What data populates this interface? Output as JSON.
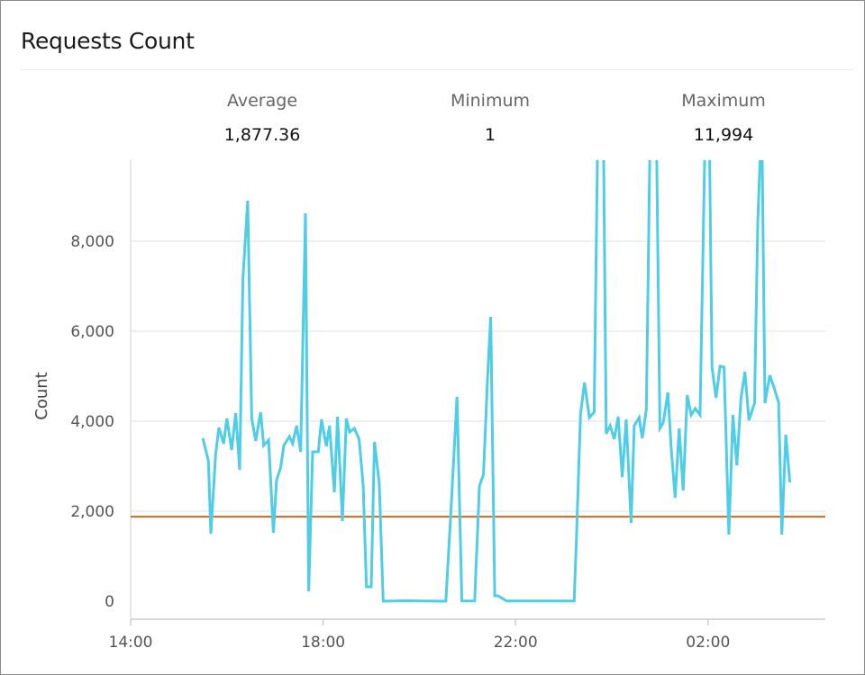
{
  "panel": {
    "title": "Requests Count"
  },
  "stats": [
    {
      "label": "Average",
      "value": "1,877.36"
    },
    {
      "label": "Minimum",
      "value": "1"
    },
    {
      "label": "Maximum",
      "value": "11,994"
    }
  ],
  "chart_data": {
    "type": "line",
    "title": "Requests Count",
    "xlabel": "",
    "ylabel": "Count",
    "x_ticks": [
      "14:00",
      "18:00",
      "22:00",
      "02:00"
    ],
    "y_ticks": [
      "0",
      "2,000",
      "4,000",
      "6,000",
      "8,000"
    ],
    "y_tick_values": [
      0,
      2000,
      4000,
      6000,
      8000
    ],
    "xlim": [
      "14:00",
      "04:26"
    ],
    "ylim": [
      0,
      9800
    ],
    "grid": true,
    "colors": {
      "series": "#4ecde6",
      "average": "#d4651c",
      "grid": "#ebebeb"
    },
    "average_line": 1877.36,
    "series": [
      {
        "points": [
          [
            "15:30",
            3620
          ],
          [
            "15:37",
            3120
          ],
          [
            "15:40",
            1500
          ],
          [
            "15:46",
            3260
          ],
          [
            "15:50",
            3860
          ],
          [
            "15:56",
            3500
          ],
          [
            "16:00",
            4060
          ],
          [
            "16:06",
            3360
          ],
          [
            "16:11",
            4180
          ],
          [
            "16:16",
            2920
          ],
          [
            "16:20",
            7160
          ],
          [
            "16:26",
            8900
          ],
          [
            "16:31",
            4060
          ],
          [
            "16:36",
            3560
          ],
          [
            "16:42",
            4200
          ],
          [
            "16:46",
            3460
          ],
          [
            "16:52",
            3580
          ],
          [
            "16:58",
            1520
          ],
          [
            "17:02",
            2700
          ],
          [
            "17:07",
            2960
          ],
          [
            "17:11",
            3460
          ],
          [
            "17:18",
            3660
          ],
          [
            "17:22",
            3500
          ],
          [
            "17:27",
            3900
          ],
          [
            "17:32",
            3320
          ],
          [
            "17:38",
            8620
          ],
          [
            "17:42",
            220
          ],
          [
            "17:47",
            3320
          ],
          [
            "17:54",
            3320
          ],
          [
            "17:58",
            4040
          ],
          [
            "18:04",
            3440
          ],
          [
            "18:08",
            3900
          ],
          [
            "18:14",
            2420
          ],
          [
            "18:18",
            4100
          ],
          [
            "18:24",
            1780
          ],
          [
            "18:29",
            4060
          ],
          [
            "18:33",
            3760
          ],
          [
            "18:39",
            3840
          ],
          [
            "18:45",
            3600
          ],
          [
            "18:50",
            2560
          ],
          [
            "18:54",
            320
          ],
          [
            "19:00",
            320
          ],
          [
            "19:04",
            3540
          ],
          [
            "19:10",
            2620
          ],
          [
            "19:15",
            1
          ],
          [
            "19:43",
            10
          ],
          [
            "20:05",
            5
          ],
          [
            "20:33",
            1
          ],
          [
            "20:39",
            1860
          ],
          [
            "20:47",
            4540
          ],
          [
            "20:53",
            5
          ],
          [
            "21:09",
            5
          ],
          [
            "21:15",
            2560
          ],
          [
            "21:20",
            2820
          ],
          [
            "21:25",
            4960
          ],
          [
            "21:29",
            6320
          ],
          [
            "21:34",
            120
          ],
          [
            "21:38",
            120
          ],
          [
            "21:49",
            5
          ],
          [
            "22:30",
            5
          ],
          [
            "23:13",
            5
          ],
          [
            "23:16",
            1420
          ],
          [
            "23:21",
            4160
          ],
          [
            "23:26",
            4860
          ],
          [
            "23:32",
            4080
          ],
          [
            "23:38",
            4200
          ],
          [
            "23:43",
            11200
          ],
          [
            "23:49",
            11500
          ],
          [
            "23:53",
            3720
          ],
          [
            "23:58",
            3900
          ],
          [
            "00:03",
            3600
          ],
          [
            "00:08",
            4100
          ],
          [
            "00:13",
            2760
          ],
          [
            "00:18",
            4040
          ],
          [
            "00:24",
            1740
          ],
          [
            "00:28",
            3900
          ],
          [
            "00:34",
            4080
          ],
          [
            "00:38",
            3620
          ],
          [
            "00:43",
            4260
          ],
          [
            "00:49",
            11994
          ],
          [
            "00:55",
            11300
          ],
          [
            "01:00",
            3840
          ],
          [
            "01:04",
            3960
          ],
          [
            "01:10",
            4640
          ],
          [
            "01:14",
            3400
          ],
          [
            "01:19",
            2300
          ],
          [
            "01:24",
            3840
          ],
          [
            "01:29",
            2460
          ],
          [
            "01:34",
            4580
          ],
          [
            "01:39",
            4140
          ],
          [
            "01:44",
            4280
          ],
          [
            "01:50",
            4140
          ],
          [
            "01:57",
            11000
          ],
          [
            "02:01",
            11400
          ],
          [
            "02:05",
            5200
          ],
          [
            "02:10",
            4520
          ],
          [
            "02:15",
            5220
          ],
          [
            "02:20",
            5200
          ],
          [
            "02:26",
            1480
          ],
          [
            "02:31",
            4140
          ],
          [
            "02:36",
            3020
          ],
          [
            "02:41",
            4500
          ],
          [
            "02:46",
            5100
          ],
          [
            "02:51",
            4020
          ],
          [
            "02:58",
            4400
          ],
          [
            "03:02",
            8420
          ],
          [
            "03:07",
            10800
          ],
          [
            "03:11",
            4400
          ],
          [
            "03:17",
            5020
          ],
          [
            "03:22",
            4760
          ],
          [
            "03:28",
            4420
          ],
          [
            "03:32",
            1480
          ],
          [
            "03:37",
            3700
          ],
          [
            "03:42",
            2640
          ]
        ]
      }
    ]
  }
}
